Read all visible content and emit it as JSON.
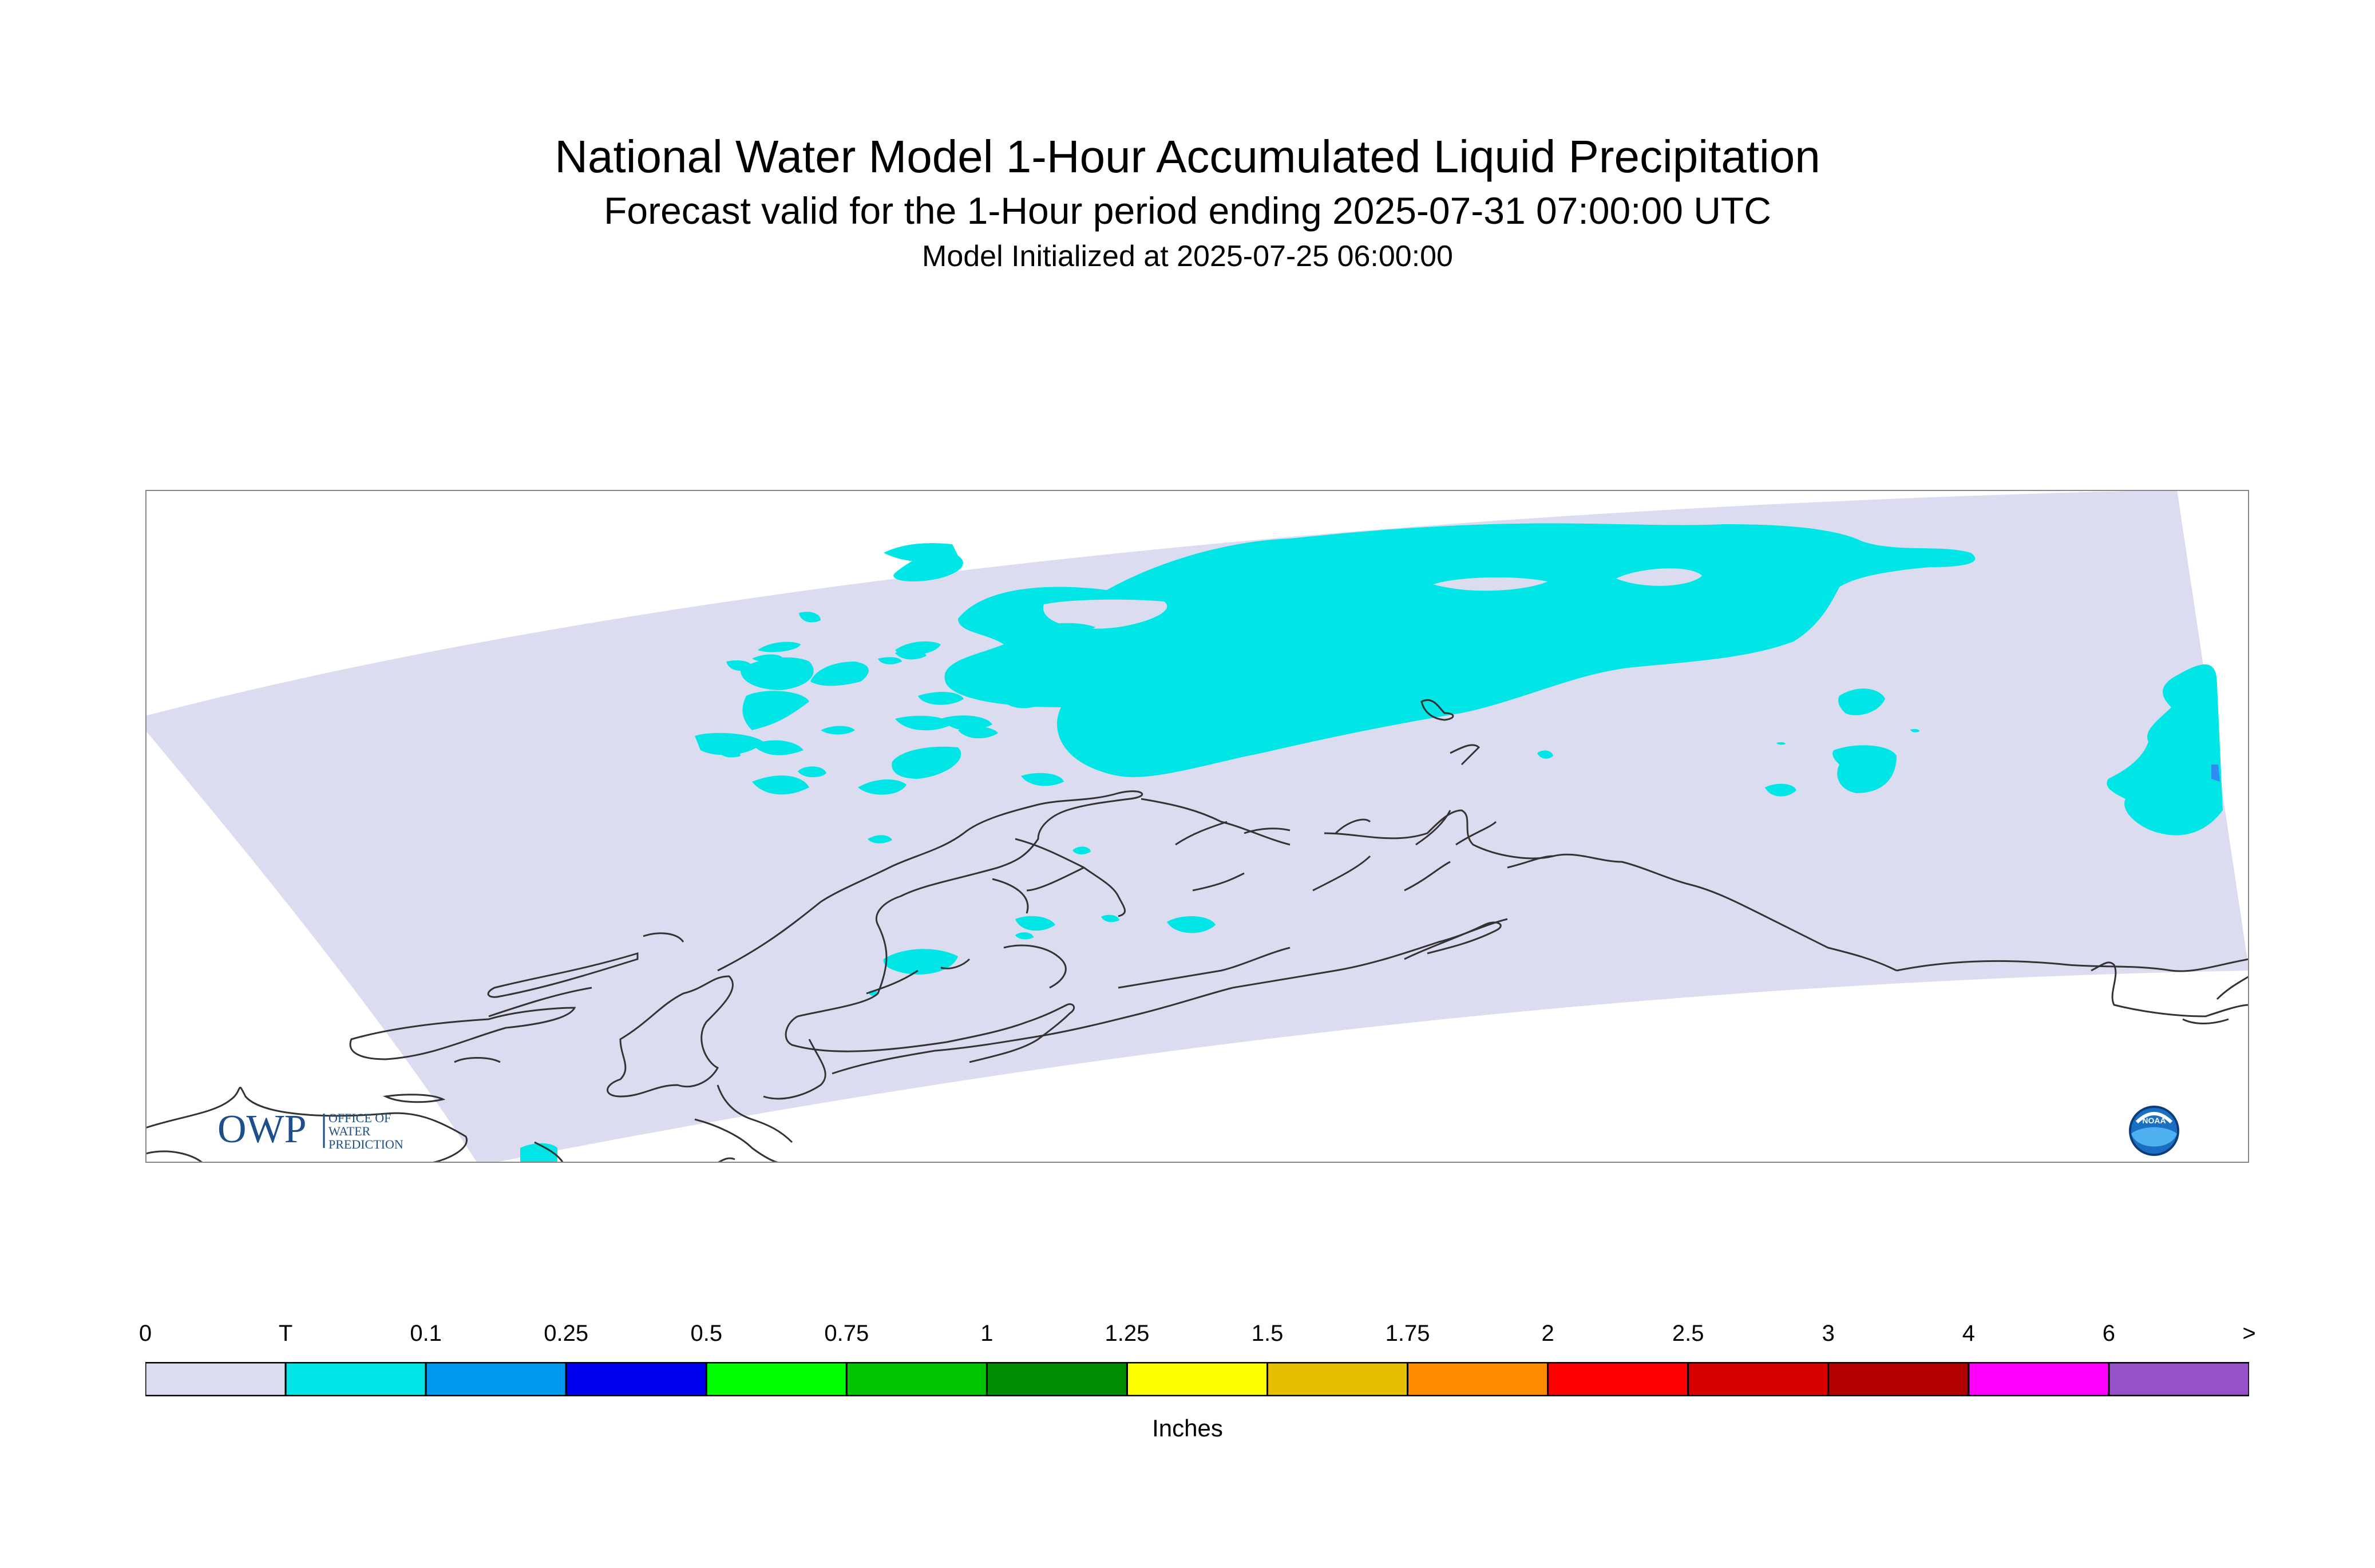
{
  "title": "National Water Model 1-Hour Accumulated Liquid Precipitation",
  "subtitle": "Forecast valid for the 1-Hour period ending 2025-07-31 07:00:00 UTC",
  "init_line": "Model Initialized at 2025-07-25 06:00:00",
  "logo_owp": {
    "text": "OWP",
    "lines": [
      "OFFICE OF",
      "WATER",
      "PREDICTION"
    ]
  },
  "logo_noaa": {
    "text": "NOAA"
  },
  "legend": {
    "units": "Inches",
    "ticks": [
      "0",
      "T",
      "0.1",
      "0.25",
      "0.5",
      "0.75",
      "1",
      "1.25",
      "1.5",
      "1.75",
      "2",
      "2.5",
      "3",
      "4",
      "6",
      ">"
    ],
    "colors": [
      "#dcdcf0",
      "#00e6e6",
      "#0099f0",
      "#0000f0",
      "#00ff00",
      "#00c400",
      "#008c00",
      "#ffff00",
      "#e6bf00",
      "#ff8c00",
      "#ff0000",
      "#d90000",
      "#b30000",
      "#ff00ff",
      "#9650c8"
    ]
  },
  "colors": {
    "domain_fill": "#dcdcf0",
    "precip_trace": "#00e6e6",
    "precip_01": "#2e8bf0",
    "coastline": "#333333",
    "frame": "#888888"
  }
}
